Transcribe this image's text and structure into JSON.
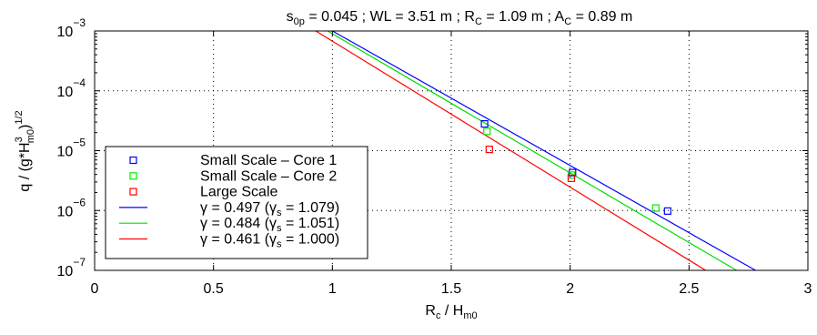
{
  "chart_data": {
    "type": "scatter",
    "title": {
      "prefix": "s",
      "sub1": "0p",
      "part2": " = 0.045 ; WL = 3.51 m ; R",
      "sub2": "C",
      "part3": " = 1.09 m ; A",
      "sub3": "C",
      "part4": " = 0.89 m"
    },
    "xlabel": {
      "main": "R",
      "sub": "c",
      "mid": " / H",
      "sub2": "m0"
    },
    "ylabel": {
      "a": "q / (g*H",
      "sup1": "3",
      "sub1": "m0",
      "b": ")",
      "sup2": "1/2"
    },
    "xlim": [
      0,
      3
    ],
    "ylim": [
      1e-07,
      0.001
    ],
    "yscale": "log",
    "grid": true,
    "x_ticks": [
      "0",
      "0.5",
      "1",
      "1.5",
      "2",
      "2.5",
      "3"
    ],
    "y_ticks": [
      {
        "base": "10",
        "exp": "−7",
        "value": 1e-07
      },
      {
        "base": "10",
        "exp": "−6",
        "value": 1e-06
      },
      {
        "base": "10",
        "exp": "−5",
        "value": 1e-05
      },
      {
        "base": "10",
        "exp": "−4",
        "value": 0.0001
      },
      {
        "base": "10",
        "exp": "−3",
        "value": 0.001
      }
    ],
    "legend_position": "lower-left",
    "series": [
      {
        "name": "Small Scale – Core 1",
        "kind": "markers",
        "color": "#0000ff",
        "points": [
          [
            1.64,
            2.8e-05
          ],
          [
            2.01,
            4.3e-06
          ],
          [
            2.41,
            9.8e-07
          ]
        ]
      },
      {
        "name": "Small Scale – Core 2",
        "kind": "markers",
        "color": "#00ee00",
        "points": [
          [
            1.65,
            2.1e-05
          ],
          [
            2.005,
            3.9e-06
          ],
          [
            2.36,
            1.1e-06
          ]
        ]
      },
      {
        "name": "Large Scale",
        "kind": "markers",
        "color": "#ff0000",
        "points": [
          [
            1.66,
            1.05e-05
          ],
          [
            2.005,
            3.45e-06
          ]
        ]
      },
      {
        "name": "γ = 0.497 (γ",
        "name_sub": "s",
        "name_end": " = 1.079)",
        "kind": "line",
        "color": "#0000ff",
        "points": [
          [
            1.0,
            0.001
          ],
          [
            2.78,
            1e-07
          ]
        ]
      },
      {
        "name": "γ = 0.484 (γ",
        "name_sub": "s",
        "name_end": " = 1.051)",
        "kind": "line",
        "color": "#00dd00",
        "points": [
          [
            0.98,
            0.001
          ],
          [
            2.7,
            1e-07
          ]
        ]
      },
      {
        "name": "γ = 0.461 (γ",
        "name_sub": "s",
        "name_end": " = 1.000)",
        "kind": "line",
        "color": "#ff0000",
        "points": [
          [
            0.93,
            0.001
          ],
          [
            2.57,
            1e-07
          ]
        ]
      }
    ]
  }
}
